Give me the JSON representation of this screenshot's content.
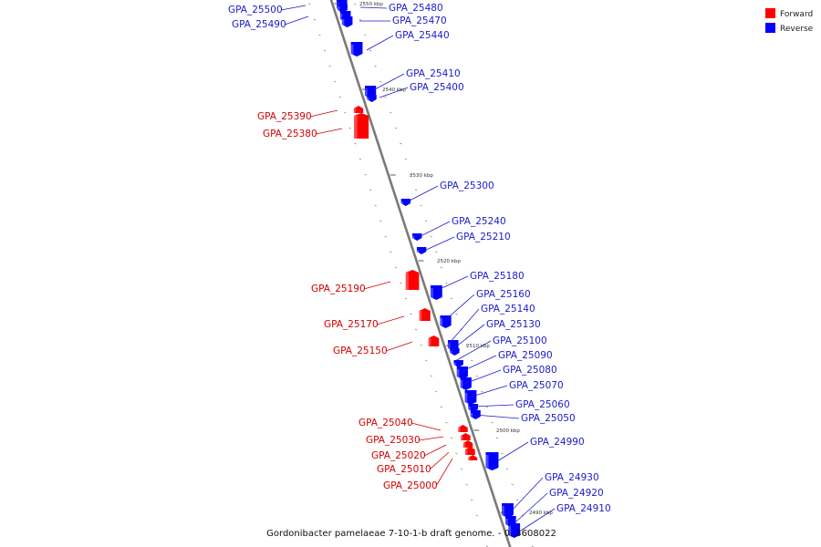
{
  "caption": "Gordonibacter pamelaeae 7-10-1-b draft genome. - 0..3608022",
  "colors": {
    "forward": "#ff0000",
    "reverse": "#0000ff",
    "forward_label": "#d40000",
    "reverse_label": "#1a1acc",
    "backbone": "#7a7a7a"
  },
  "legend": [
    {
      "label": "Forward",
      "strand": "forward"
    },
    {
      "label": "Reverse",
      "strand": "reverse"
    }
  ],
  "ticks": [
    {
      "label": "2550 kbp",
      "pos_kbp": 2550
    },
    {
      "label": "2540 kbp",
      "pos_kbp": 2540
    },
    {
      "label": "2530 kbp",
      "pos_kbp": 2530
    },
    {
      "label": "2520 kbp",
      "pos_kbp": 2520
    },
    {
      "label": "2510 kbp",
      "pos_kbp": 2510
    },
    {
      "label": "2500 kbp",
      "pos_kbp": 2500
    },
    {
      "label": "2490 kbp",
      "pos_kbp": 2490
    }
  ],
  "genes": [
    {
      "name": "GPA_25500",
      "strand": "reverse"
    },
    {
      "name": "GPA_25490",
      "strand": "reverse"
    },
    {
      "name": "GPA_25480",
      "strand": "reverse"
    },
    {
      "name": "GPA_25470",
      "strand": "reverse"
    },
    {
      "name": "GPA_25440",
      "strand": "reverse"
    },
    {
      "name": "GPA_25410",
      "strand": "reverse"
    },
    {
      "name": "GPA_25400",
      "strand": "reverse"
    },
    {
      "name": "GPA_25390",
      "strand": "forward"
    },
    {
      "name": "GPA_25380",
      "strand": "forward"
    },
    {
      "name": "GPA_25300",
      "strand": "reverse"
    },
    {
      "name": "GPA_25240",
      "strand": "reverse"
    },
    {
      "name": "GPA_25210",
      "strand": "reverse"
    },
    {
      "name": "GPA_25190",
      "strand": "forward"
    },
    {
      "name": "GPA_25180",
      "strand": "reverse"
    },
    {
      "name": "GPA_25170",
      "strand": "forward"
    },
    {
      "name": "GPA_25160",
      "strand": "reverse"
    },
    {
      "name": "GPA_25150",
      "strand": "forward"
    },
    {
      "name": "GPA_25140",
      "strand": "reverse"
    },
    {
      "name": "GPA_25130",
      "strand": "reverse"
    },
    {
      "name": "GPA_25100",
      "strand": "reverse"
    },
    {
      "name": "GPA_25090",
      "strand": "reverse"
    },
    {
      "name": "GPA_25080",
      "strand": "reverse"
    },
    {
      "name": "GPA_25070",
      "strand": "reverse"
    },
    {
      "name": "GPA_25060",
      "strand": "reverse"
    },
    {
      "name": "GPA_25050",
      "strand": "reverse"
    },
    {
      "name": "GPA_25040",
      "strand": "forward"
    },
    {
      "name": "GPA_25030",
      "strand": "forward"
    },
    {
      "name": "GPA_25020",
      "strand": "forward"
    },
    {
      "name": "GPA_25010",
      "strand": "forward"
    },
    {
      "name": "GPA_25000",
      "strand": "forward"
    },
    {
      "name": "GPA_24990",
      "strand": "reverse"
    },
    {
      "name": "GPA_24930",
      "strand": "reverse"
    },
    {
      "name": "GPA_24920",
      "strand": "reverse"
    },
    {
      "name": "GPA_24910",
      "strand": "reverse"
    }
  ]
}
